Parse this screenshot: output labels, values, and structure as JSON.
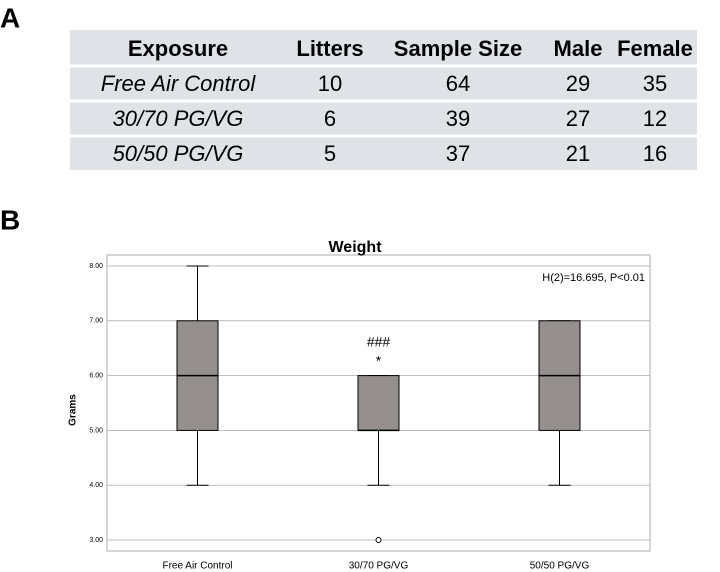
{
  "panels": [
    "A",
    "B"
  ],
  "table": {
    "header": [
      "Exposure",
      "Litters",
      "Sample Size",
      "Male",
      "Female"
    ],
    "rows": [
      [
        "Free Air Control",
        10,
        64,
        29,
        35
      ],
      [
        "30/70 PG/VG",
        6,
        39,
        27,
        12
      ],
      [
        "50/50 PG/VG",
        5,
        37,
        21,
        16
      ]
    ]
  },
  "chart_data": {
    "type": "box",
    "title": "Weight",
    "ylabel": "Grams",
    "annotation": "H(2)=16.695, P<0.01",
    "categories": [
      "Free Air Control",
      "30/70 PG/VG",
      "50/50 PG/VG"
    ],
    "boxes": [
      {
        "low": 4,
        "q1": 5,
        "median": 6,
        "q3": 7,
        "high": 8,
        "outliers": []
      },
      {
        "low": 4,
        "q1": 5,
        "median": 5,
        "q3": 6,
        "high": 6,
        "outliers": [
          3
        ]
      },
      {
        "low": 4,
        "q1": 5,
        "median": 6,
        "q3": 7,
        "high": 7,
        "outliers": []
      }
    ],
    "significance": [
      [],
      [
        "###",
        "*"
      ],
      []
    ],
    "color": "#958f8d",
    "ylim": [
      2.8,
      8.2
    ],
    "yticks": [
      {
        "value": 3,
        "label": "3.00"
      },
      {
        "value": 4,
        "label": "4.00"
      },
      {
        "value": 5,
        "label": "5.00"
      },
      {
        "value": 6,
        "label": "6.00"
      },
      {
        "value": 7,
        "label": "7.00"
      },
      {
        "value": 8,
        "label": "8.00"
      }
    ],
    "grid": true
  }
}
